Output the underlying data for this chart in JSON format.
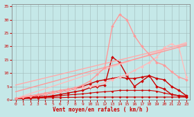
{
  "background_color": "#c5e8e8",
  "grid_color": "#a0b8b8",
  "xlabel": "Vent moyen/en rafales ( km/h )",
  "xlabel_color": "#cc0000",
  "tick_color": "#cc0000",
  "xlim": [
    -0.5,
    23.5
  ],
  "ylim": [
    0,
    36
  ],
  "xticks": [
    0,
    1,
    2,
    3,
    4,
    5,
    6,
    7,
    8,
    9,
    10,
    11,
    12,
    13,
    14,
    15,
    16,
    17,
    18,
    19,
    20,
    21,
    22,
    23
  ],
  "yticks": [
    0,
    5,
    10,
    15,
    20,
    25,
    30,
    35
  ],
  "lines": [
    {
      "x": [
        0,
        1,
        2,
        3,
        4,
        5,
        6,
        7,
        8,
        9,
        10,
        11,
        12,
        13,
        14,
        15,
        16,
        17,
        18,
        19,
        20,
        21,
        22,
        23
      ],
      "y": [
        0.3,
        0.5,
        0.5,
        0.6,
        0.7,
        0.8,
        0.8,
        0.9,
        0.9,
        1.0,
        1.0,
        1.0,
        1.0,
        1.0,
        1.0,
        1.0,
        1.0,
        1.0,
        1.0,
        1.0,
        1.0,
        1.0,
        1.0,
        1.0
      ],
      "color": "#cc0000",
      "linewidth": 0.8,
      "marker": "D",
      "markersize": 1.5
    },
    {
      "x": [
        0,
        1,
        2,
        3,
        4,
        5,
        6,
        7,
        8,
        9,
        10,
        11,
        12,
        13,
        14,
        15,
        16,
        17,
        18,
        19,
        20,
        21,
        22,
        23
      ],
      "y": [
        0.3,
        0.5,
        0.6,
        0.8,
        1.0,
        1.2,
        1.5,
        1.8,
        2.0,
        2.2,
        2.5,
        2.8,
        3.0,
        3.2,
        3.5,
        3.5,
        3.5,
        3.5,
        3.5,
        3.2,
        2.5,
        2.0,
        1.5,
        1.5
      ],
      "color": "#cc0000",
      "linewidth": 0.8,
      "marker": "D",
      "markersize": 1.5
    },
    {
      "x": [
        0,
        1,
        2,
        3,
        4,
        5,
        6,
        7,
        8,
        9,
        10,
        11,
        12,
        13,
        14,
        15,
        16,
        17,
        18,
        19,
        20,
        21,
        22,
        23
      ],
      "y": [
        0.5,
        0.5,
        0.8,
        1.0,
        1.2,
        1.5,
        2.0,
        2.5,
        3.0,
        3.5,
        4.5,
        5.0,
        5.5,
        16,
        14,
        9,
        5,
        7,
        9,
        5,
        4,
        2,
        1.5,
        1.0
      ],
      "color": "#cc0000",
      "linewidth": 1.0,
      "marker": "D",
      "markersize": 2.0
    },
    {
      "x": [
        0,
        1,
        2,
        3,
        4,
        5,
        6,
        7,
        8,
        9,
        10,
        11,
        12,
        13,
        14,
        15,
        16,
        17,
        18,
        19,
        20,
        21,
        22,
        23
      ],
      "y": [
        0.5,
        0.8,
        1.0,
        1.5,
        2.0,
        2.5,
        3.0,
        3.5,
        4.0,
        5.0,
        6.0,
        7.0,
        7.5,
        8.0,
        8.5,
        8.0,
        8.0,
        8.5,
        9.0,
        8.0,
        7.5,
        5.0,
        3.5,
        1.5
      ],
      "color": "#cc0000",
      "linewidth": 1.0,
      "marker": "D",
      "markersize": 2.0
    },
    {
      "x": [
        0,
        1,
        2,
        3,
        4,
        5,
        6,
        7,
        8,
        9,
        10,
        11,
        12,
        13,
        14,
        15,
        16,
        17,
        18,
        19,
        20,
        21,
        22,
        23
      ],
      "y": [
        0.5,
        0.9,
        1.3,
        1.7,
        2.1,
        2.5,
        3.0,
        3.5,
        4.0,
        4.5,
        5.0,
        5.5,
        6.5,
        7.5,
        8.5,
        9.5,
        11.0,
        12.5,
        14.0,
        16.0,
        19.5,
        21.0,
        19.5,
        8.5
      ],
      "color": "#ffbbbb",
      "linewidth": 1.0,
      "marker": "D",
      "markersize": 2.0
    },
    {
      "x": [
        0,
        23
      ],
      "y": [
        0.5,
        21.5
      ],
      "color": "#ffbbbb",
      "linewidth": 1.0,
      "marker": "None",
      "markersize": 0
    },
    {
      "x": [
        0,
        23
      ],
      "y": [
        3.0,
        20.5
      ],
      "color": "#ff9999",
      "linewidth": 1.0,
      "marker": "None",
      "markersize": 0
    },
    {
      "x": [
        0,
        23
      ],
      "y": [
        5.5,
        21.0
      ],
      "color": "#ffaaaa",
      "linewidth": 1.0,
      "marker": "None",
      "markersize": 0
    },
    {
      "x": [
        0,
        1,
        2,
        3,
        4,
        5,
        6,
        7,
        8,
        9,
        10,
        11,
        12,
        13,
        14,
        15,
        16,
        17,
        18,
        19,
        20,
        21,
        22,
        23
      ],
      "y": [
        0.5,
        1.0,
        1.5,
        2.0,
        2.5,
        3.0,
        3.5,
        4.0,
        4.5,
        5.5,
        7.0,
        9.5,
        12.0,
        27.5,
        32.0,
        30.0,
        24.0,
        20.0,
        17.0,
        14.0,
        13.0,
        10.5,
        8.5,
        7.5
      ],
      "color": "#ff9999",
      "linewidth": 1.0,
      "marker": "D",
      "markersize": 2.0
    }
  ]
}
